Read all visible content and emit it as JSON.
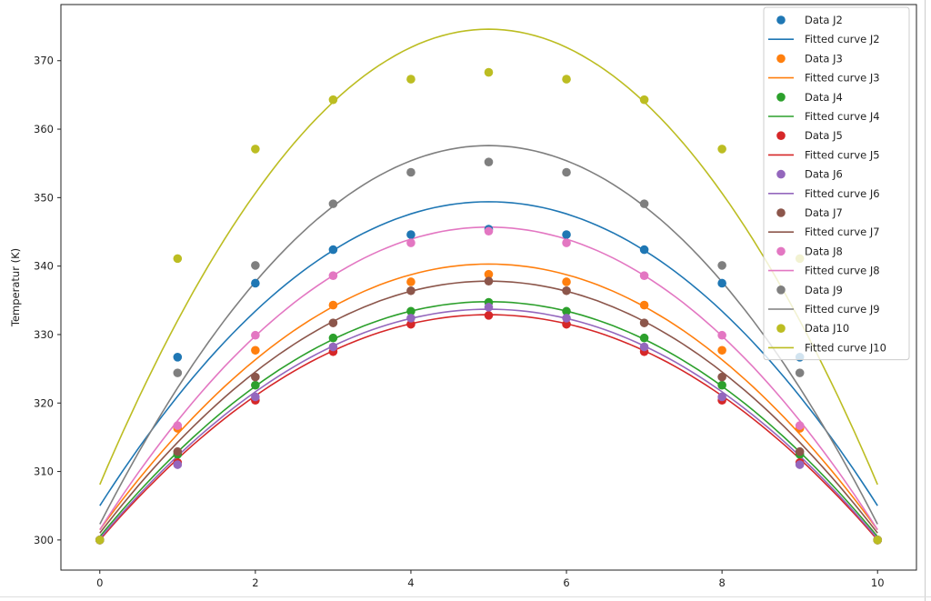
{
  "chart_data": {
    "type": "scatter+line",
    "title": "",
    "xlabel": "",
    "ylabel": "Temperatur (K)",
    "xlim": [
      -0.5,
      10.5
    ],
    "ylim": [
      295.6,
      378.2
    ],
    "xticks": [
      0,
      2,
      4,
      6,
      8,
      10
    ],
    "yticks": [
      300,
      310,
      320,
      330,
      340,
      350,
      360,
      370
    ],
    "grid": false,
    "legend_position": "top-right",
    "x": [
      0,
      1,
      2,
      3,
      4,
      5,
      6,
      7,
      8,
      9,
      10
    ],
    "series": [
      {
        "name": "J2",
        "color": "#1f77b4",
        "data_label": "Data J2",
        "fit_label": "Fitted curve J2",
        "values": [
          300,
          326.7,
          337.5,
          342.4,
          344.6,
          345.4,
          344.6,
          342.4,
          337.5,
          326.7,
          300
        ],
        "fit_at_0": 305.0,
        "fit_peak": 349.4
      },
      {
        "name": "J3",
        "color": "#ff7f0e",
        "data_label": "Data J3",
        "fit_label": "Fitted curve J3",
        "values": [
          300,
          316.3,
          327.7,
          334.3,
          337.7,
          338.8,
          337.7,
          334.3,
          327.7,
          316.3,
          300
        ],
        "fit_at_0": 301.5,
        "fit_peak": 340.3
      },
      {
        "name": "J4",
        "color": "#2ca02c",
        "data_label": "Data J4",
        "fit_label": "Fitted curve J4",
        "values": [
          300,
          312.5,
          322.6,
          329.5,
          333.4,
          334.7,
          333.4,
          329.5,
          322.6,
          312.5,
          300
        ],
        "fit_at_0": 300.5,
        "fit_peak": 334.8
      },
      {
        "name": "J5",
        "color": "#d62728",
        "data_label": "Data J5",
        "fit_label": "Fitted curve J5",
        "values": [
          300,
          311.3,
          320.4,
          327.5,
          331.5,
          332.8,
          331.5,
          327.5,
          320.4,
          311.3,
          300
        ],
        "fit_at_0": 300.0,
        "fit_peak": 332.9
      },
      {
        "name": "J6",
        "color": "#9467bd",
        "data_label": "Data J6",
        "fit_label": "Fitted curve J6",
        "values": [
          300,
          311.0,
          320.9,
          328.2,
          332.4,
          334.0,
          332.4,
          328.2,
          320.9,
          311.0,
          300
        ],
        "fit_at_0": 300.2,
        "fit_peak": 333.7
      },
      {
        "name": "J7",
        "color": "#8c564b",
        "data_label": "Data J7",
        "fit_label": "Fitted curve J7",
        "values": [
          300,
          312.9,
          323.8,
          331.7,
          336.4,
          337.8,
          336.4,
          331.7,
          323.8,
          312.9,
          300
        ],
        "fit_at_0": 301.0,
        "fit_peak": 337.8
      },
      {
        "name": "J8",
        "color": "#e377c2",
        "data_label": "Data J8",
        "fit_label": "Fitted curve J8",
        "values": [
          300,
          316.7,
          329.9,
          338.6,
          343.4,
          345.1,
          343.4,
          338.6,
          329.9,
          316.7,
          300
        ],
        "fit_at_0": 301.5,
        "fit_peak": 345.7
      },
      {
        "name": "J9",
        "color": "#7f7f7f",
        "data_label": "Data J9",
        "fit_label": "Fitted curve J9",
        "values": [
          300,
          324.4,
          340.1,
          349.1,
          353.7,
          355.2,
          353.7,
          349.1,
          340.1,
          324.4,
          300
        ],
        "fit_at_0": 302.3,
        "fit_peak": 357.6
      },
      {
        "name": "J10",
        "color": "#bcbd22",
        "data_label": "Data J10",
        "fit_label": "Fitted curve J10",
        "values": [
          300,
          341.1,
          357.1,
          364.3,
          367.3,
          368.3,
          367.3,
          364.3,
          357.1,
          341.1,
          300
        ],
        "fit_at_0": 308.1,
        "fit_peak": 374.6
      }
    ]
  }
}
